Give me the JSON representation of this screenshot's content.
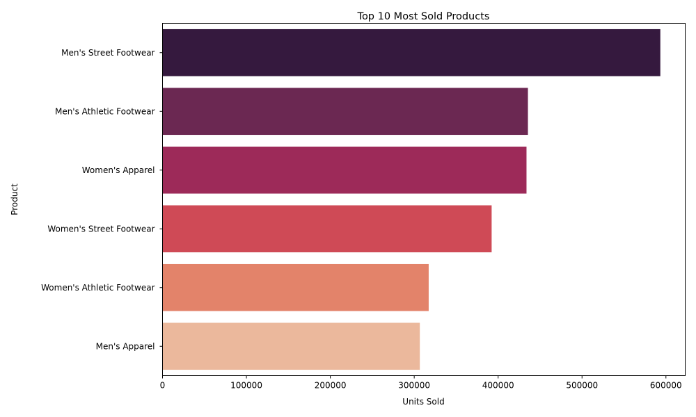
{
  "chart_data": {
    "type": "bar",
    "orientation": "horizontal",
    "title": "Top 10 Most Sold Products",
    "xlabel": "Units Sold",
    "ylabel": "Product",
    "categories": [
      "Men's Street Footwear",
      "Men's Athletic Footwear",
      "Women's Apparel",
      "Women's Street Footwear",
      "Women's Athletic Footwear",
      "Men's Apparel"
    ],
    "values": [
      593320,
      435526,
      433827,
      392269,
      317236,
      306683
    ],
    "colors": [
      "#35193e",
      "#6b2852",
      "#9d2a59",
      "#cf4a56",
      "#e3836a",
      "#ebb89c"
    ],
    "xlim": [
      0,
      622986
    ],
    "xticks": [
      0,
      100000,
      200000,
      300000,
      400000,
      500000,
      600000
    ],
    "grid": false,
    "legend": "none"
  }
}
